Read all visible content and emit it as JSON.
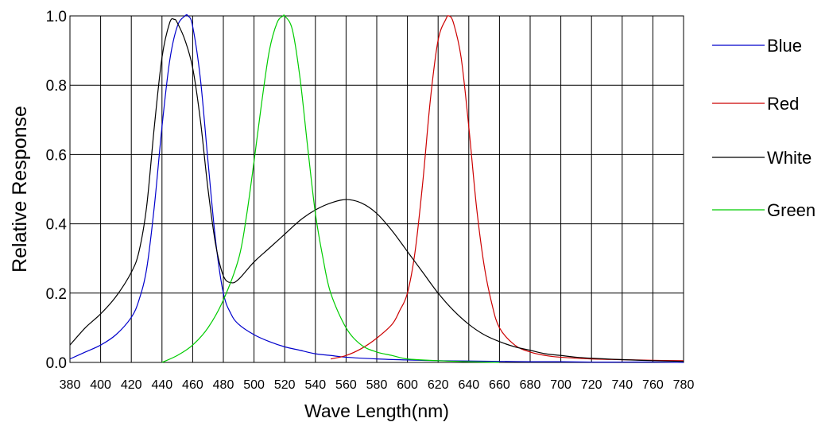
{
  "chart_data": {
    "type": "line",
    "title": "",
    "xlabel": "Wave Length(nm)",
    "ylabel": "Relative Response",
    "xlim": [
      380,
      780
    ],
    "ylim": [
      0.0,
      1.0
    ],
    "x_ticks": [
      380,
      400,
      420,
      440,
      460,
      480,
      500,
      520,
      540,
      560,
      580,
      600,
      620,
      640,
      660,
      680,
      700,
      720,
      740,
      760,
      780
    ],
    "x_tick_labels": [
      "380",
      "400",
      "420",
      "440",
      "460",
      "480",
      "500",
      "520",
      "540",
      "560",
      "580",
      "600",
      "620",
      "640",
      "660",
      "680",
      "700",
      "720",
      "740",
      "760",
      "780"
    ],
    "y_ticks": [
      0.0,
      0.2,
      0.4,
      0.6,
      0.8,
      1.0
    ],
    "y_tick_labels": [
      "0.0",
      "0.2",
      "0.4",
      "0.6",
      "0.8",
      "1.0"
    ],
    "grid": true,
    "legend_position": "right",
    "series": [
      {
        "name": "Blue",
        "color": "#0000cc",
        "x": [
          380,
          390,
          400,
          410,
          420,
          425,
          430,
          435,
          440,
          445,
          450,
          455,
          457,
          460,
          465,
          470,
          475,
          480,
          485,
          490,
          500,
          510,
          520,
          530,
          540,
          550,
          560,
          580,
          600,
          620,
          640,
          660,
          680,
          700,
          720,
          740,
          760,
          780
        ],
        "y": [
          0.01,
          0.03,
          0.05,
          0.08,
          0.13,
          0.18,
          0.27,
          0.45,
          0.68,
          0.87,
          0.97,
          1.0,
          1.0,
          0.97,
          0.82,
          0.58,
          0.35,
          0.2,
          0.14,
          0.11,
          0.08,
          0.06,
          0.045,
          0.035,
          0.025,
          0.02,
          0.015,
          0.01,
          0.007,
          0.005,
          0.004,
          0.003,
          0.002,
          0.002,
          0.001,
          0.001,
          0.001,
          0.0
        ]
      },
      {
        "name": "Red",
        "color": "#cc0000",
        "x": [
          550,
          560,
          570,
          580,
          590,
          595,
          600,
          605,
          610,
          615,
          620,
          625,
          627,
          630,
          635,
          640,
          645,
          650,
          655,
          660,
          670,
          680,
          690,
          700,
          720,
          740,
          760,
          780
        ],
        "y": [
          0.01,
          0.02,
          0.04,
          0.07,
          0.11,
          0.15,
          0.2,
          0.32,
          0.52,
          0.76,
          0.93,
          0.99,
          1.0,
          0.98,
          0.88,
          0.68,
          0.45,
          0.28,
          0.17,
          0.1,
          0.05,
          0.03,
          0.02,
          0.015,
          0.01,
          0.008,
          0.006,
          0.005
        ]
      },
      {
        "name": "White",
        "color": "#000000",
        "x": [
          380,
          390,
          400,
          410,
          420,
          425,
          430,
          435,
          440,
          445,
          448,
          450,
          455,
          460,
          465,
          470,
          475,
          480,
          485,
          490,
          500,
          510,
          520,
          530,
          540,
          550,
          560,
          570,
          580,
          590,
          600,
          610,
          620,
          630,
          640,
          650,
          660,
          670,
          680,
          690,
          700,
          710,
          720,
          740,
          760,
          780
        ],
        "y": [
          0.05,
          0.1,
          0.14,
          0.19,
          0.26,
          0.32,
          0.45,
          0.68,
          0.88,
          0.98,
          0.99,
          0.98,
          0.93,
          0.85,
          0.7,
          0.5,
          0.34,
          0.25,
          0.23,
          0.24,
          0.29,
          0.33,
          0.37,
          0.41,
          0.44,
          0.46,
          0.47,
          0.46,
          0.43,
          0.38,
          0.32,
          0.26,
          0.2,
          0.15,
          0.11,
          0.08,
          0.06,
          0.045,
          0.035,
          0.025,
          0.02,
          0.015,
          0.012,
          0.008,
          0.005,
          0.003
        ]
      },
      {
        "name": "Green",
        "color": "#00cc00",
        "x": [
          440,
          450,
          460,
          470,
          480,
          490,
          495,
          500,
          505,
          510,
          515,
          519,
          520,
          525,
          530,
          535,
          540,
          545,
          550,
          560,
          570,
          580,
          590,
          600,
          620,
          640,
          660
        ],
        "y": [
          0.0,
          0.02,
          0.05,
          0.1,
          0.18,
          0.3,
          0.42,
          0.58,
          0.75,
          0.9,
          0.98,
          1.0,
          1.0,
          0.96,
          0.82,
          0.62,
          0.43,
          0.3,
          0.2,
          0.1,
          0.05,
          0.03,
          0.02,
          0.01,
          0.005,
          0.002,
          0.0
        ]
      }
    ]
  }
}
